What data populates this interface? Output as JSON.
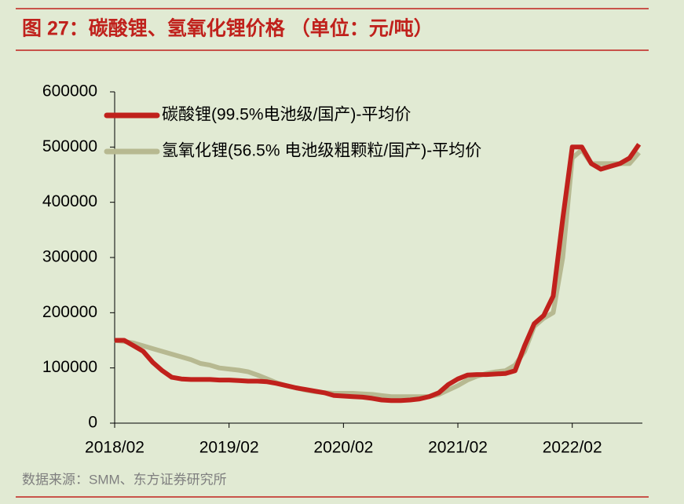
{
  "chart_data": {
    "type": "line",
    "title": "图 27：碳酸锂、氢氧化锂价格 （单位：元/吨）",
    "source": "数据来源：SMM、东方证券研究所",
    "x": [
      "2018/02",
      "2018/03",
      "2018/04",
      "2018/05",
      "2018/06",
      "2018/07",
      "2018/08",
      "2018/09",
      "2018/10",
      "2018/11",
      "2018/12",
      "2019/01",
      "2019/02",
      "2019/03",
      "2019/04",
      "2019/05",
      "2019/06",
      "2019/07",
      "2019/08",
      "2019/09",
      "2019/10",
      "2019/11",
      "2019/12",
      "2020/01",
      "2020/02",
      "2020/03",
      "2020/04",
      "2020/05",
      "2020/06",
      "2020/07",
      "2020/08",
      "2020/09",
      "2020/10",
      "2020/11",
      "2020/12",
      "2021/01",
      "2021/02",
      "2021/03",
      "2021/04",
      "2021/05",
      "2021/06",
      "2021/07",
      "2021/08",
      "2021/09",
      "2021/10",
      "2021/11",
      "2021/12",
      "2022/01",
      "2022/02",
      "2022/03",
      "2022/04",
      "2022/05",
      "2022/06",
      "2022/07",
      "2022/08",
      "2022/09"
    ],
    "xticks": [
      "2018/02",
      "2019/02",
      "2020/02",
      "2021/02",
      "2022/02"
    ],
    "ylim": [
      0,
      600000
    ],
    "yticks": [
      0,
      100000,
      200000,
      300000,
      400000,
      500000,
      600000
    ],
    "legend": "top-left",
    "series": [
      {
        "name": "碳酸锂(99.5%电池级/国产)-平均价",
        "color": "#c0211c",
        "values": [
          150000,
          150000,
          140000,
          130000,
          110000,
          95000,
          83000,
          80000,
          79000,
          79000,
          79000,
          78000,
          78000,
          77000,
          76000,
          76000,
          75000,
          72000,
          68000,
          64000,
          61000,
          58000,
          55000,
          50000,
          49000,
          48000,
          47000,
          45000,
          42000,
          41000,
          41000,
          42000,
          44000,
          48000,
          55000,
          70000,
          80000,
          87000,
          88000,
          88000,
          89000,
          90000,
          95000,
          140000,
          180000,
          195000,
          230000,
          370000,
          500000,
          500000,
          470000,
          460000,
          465000,
          470000,
          480000,
          505000
        ]
      },
      {
        "name": "氢氧化锂(56.5% 电池级粗颗粒/国产)-平均价",
        "color": "#b7b991",
        "values": [
          150000,
          148000,
          145000,
          140000,
          135000,
          130000,
          125000,
          120000,
          115000,
          108000,
          105000,
          100000,
          98000,
          96000,
          93000,
          87000,
          80000,
          73000,
          68000,
          64000,
          60000,
          57000,
          55000,
          54000,
          54000,
          54000,
          53000,
          52000,
          50000,
          48000,
          48000,
          48000,
          48000,
          48000,
          52000,
          60000,
          68000,
          78000,
          85000,
          90000,
          93000,
          95000,
          105000,
          130000,
          175000,
          190000,
          200000,
          300000,
          480000,
          495000,
          470000,
          470000,
          470000,
          470000,
          470000,
          490000
        ]
      }
    ]
  }
}
